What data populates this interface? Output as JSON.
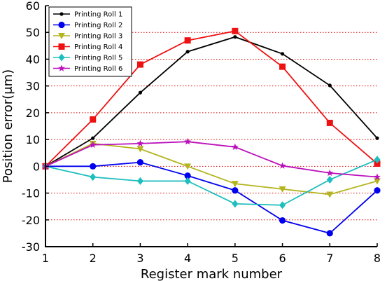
{
  "chart_data": {
    "type": "line",
    "title": "",
    "xlabel": "Register mark number",
    "ylabel": "Position error(μm)",
    "x": [
      1,
      2,
      3,
      4,
      5,
      6,
      7,
      8
    ],
    "xlim": [
      1,
      8
    ],
    "ylim": [
      -30,
      60
    ],
    "yticks": [
      -30,
      -20,
      -10,
      0,
      10,
      20,
      30,
      40,
      50,
      60
    ],
    "xticks": [
      1,
      2,
      3,
      4,
      5,
      6,
      7,
      8
    ],
    "grid": "horizontal dotted red",
    "legend_position": "top-left",
    "series": [
      {
        "name": "Printing Roll 1",
        "color": "#000000",
        "marker": "dot",
        "values": [
          0,
          10.5,
          27.5,
          42.8,
          48.3,
          42,
          30.2,
          10.5
        ]
      },
      {
        "name": "Printing Roll 2",
        "color": "#0000ee",
        "marker": "circle",
        "values": [
          0,
          0,
          1.5,
          -3.5,
          -9,
          -20.2,
          -25,
          -9
        ]
      },
      {
        "name": "Printing Roll 3",
        "color": "#b4b41e",
        "marker": "triangle-down",
        "values": [
          0,
          8.5,
          6.5,
          0,
          -6.5,
          -8.5,
          -10.5,
          -5.5
        ]
      },
      {
        "name": "Printing Roll 4",
        "color": "#ee1111",
        "marker": "square",
        "values": [
          0,
          17.5,
          38,
          47,
          50.5,
          37.2,
          16.2,
          1
        ]
      },
      {
        "name": "Printing Roll 5",
        "color": "#1ebebe",
        "marker": "diamond",
        "values": [
          0,
          -4,
          -5.5,
          -5.5,
          -14,
          -14.5,
          -5,
          2.5
        ]
      },
      {
        "name": "Printing Roll 6",
        "color": "#bb11bb",
        "marker": "star",
        "values": [
          0,
          8,
          8.5,
          9.2,
          7.2,
          0.2,
          -2.5,
          -4
        ]
      }
    ]
  }
}
